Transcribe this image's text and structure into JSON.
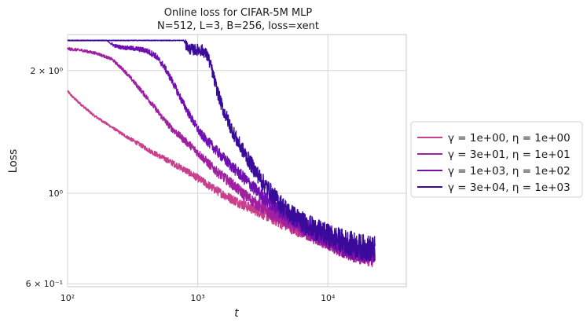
{
  "chart_data": {
    "type": "line",
    "title": "Online loss for CIFAR-5M MLP",
    "subtitle": "N=512, L=3, B=256, loss=xent",
    "xlabel": "t",
    "ylabel": "Loss",
    "xscale": "log",
    "yscale": "log",
    "xlim": [
      100,
      40000
    ],
    "ylim": [
      0.59,
      2.45
    ],
    "x_ticks": [
      {
        "value": 100,
        "label": "10²"
      },
      {
        "value": 1000,
        "label": "10³"
      },
      {
        "value": 10000,
        "label": "10⁴"
      }
    ],
    "y_ticks": [
      {
        "value": 2.0,
        "label": "2 × 10⁰"
      },
      {
        "value": 1.0,
        "label": "10⁰"
      },
      {
        "value": 0.6,
        "label": "6 × 10⁻¹"
      }
    ],
    "grid": true,
    "legend_position": "right-outside",
    "series": [
      {
        "name": "γ = 1e+00, η = 1e+00",
        "color": "#c8408c",
        "noise": 0.05,
        "x": [
          100,
          110,
          130,
          160,
          200,
          260,
          340,
          450,
          600,
          800,
          1000,
          1300,
          1700,
          2200,
          3000,
          4000,
          5500,
          7500,
          10000,
          13000,
          17000,
          20000,
          23000
        ],
        "y": [
          1.78,
          1.72,
          1.64,
          1.55,
          1.48,
          1.4,
          1.33,
          1.26,
          1.2,
          1.14,
          1.09,
          1.03,
          0.98,
          0.94,
          0.9,
          0.86,
          0.82,
          0.79,
          0.76,
          0.73,
          0.71,
          0.7,
          0.69
        ]
      },
      {
        "name": "γ = 3e+01, η = 1e+01",
        "color": "#a020a0",
        "noise": 0.055,
        "x": [
          100,
          130,
          170,
          220,
          280,
          350,
          430,
          520,
          620,
          750,
          900,
          1100,
          1400,
          1800,
          2300,
          3000,
          4000,
          5500,
          7500,
          10000,
          13000,
          17000,
          23000
        ],
        "y": [
          2.26,
          2.24,
          2.2,
          2.13,
          1.98,
          1.82,
          1.68,
          1.55,
          1.45,
          1.37,
          1.3,
          1.22,
          1.13,
          1.06,
          0.99,
          0.93,
          0.88,
          0.83,
          0.79,
          0.76,
          0.73,
          0.71,
          0.7
        ]
      },
      {
        "name": "γ = 1e+03, η = 1e+02",
        "color": "#7010b0",
        "noise": 0.06,
        "x": [
          100,
          200,
          210,
          230,
          260,
          300,
          340,
          400,
          470,
          550,
          650,
          760,
          900,
          1050,
          1250,
          1500,
          1800,
          2200,
          2700,
          3300,
          4200,
          5500,
          7500,
          10000,
          13000,
          17000,
          23000
        ],
        "y": [
          2.37,
          2.37,
          2.34,
          2.3,
          2.28,
          2.27,
          2.26,
          2.24,
          2.18,
          2.05,
          1.86,
          1.68,
          1.52,
          1.4,
          1.32,
          1.24,
          1.17,
          1.1,
          1.03,
          0.97,
          0.91,
          0.86,
          0.81,
          0.77,
          0.74,
          0.72,
          0.71
        ]
      },
      {
        "name": "γ = 3e+04, η = 1e+03",
        "color": "#3a0a9a",
        "noise": 0.075,
        "x": [
          100,
          780,
          820,
          860,
          920,
          1000,
          1100,
          1200,
          1300,
          1400,
          1550,
          1750,
          2000,
          2300,
          2700,
          3200,
          4000,
          5000,
          6500,
          8500,
          11000,
          14000,
          18000,
          23000
        ],
        "y": [
          2.37,
          2.37,
          2.3,
          2.26,
          2.25,
          2.25,
          2.24,
          2.16,
          1.98,
          1.8,
          1.62,
          1.48,
          1.35,
          1.25,
          1.15,
          1.06,
          0.97,
          0.9,
          0.85,
          0.81,
          0.78,
          0.76,
          0.74,
          0.73
        ]
      }
    ]
  }
}
